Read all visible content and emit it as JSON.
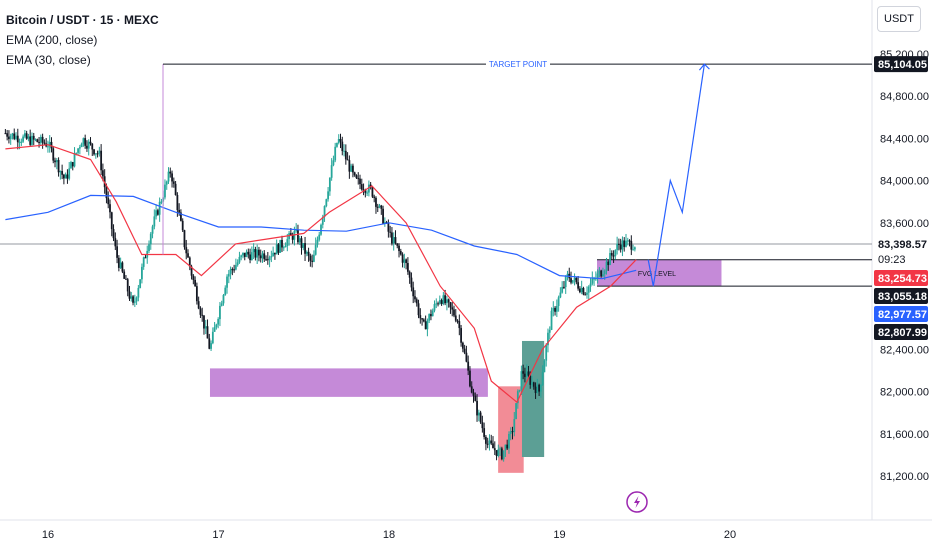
{
  "legend": {
    "title": "Bitcoin / USDT · 15 · MEXC",
    "ema200": "EMA (200, close)",
    "ema30": "EMA (30, close)"
  },
  "currency_button": "USDT",
  "colors": {
    "bull": "#26a69a",
    "bear": "#131722",
    "ema200": "#2962ff",
    "ema30": "#f23645",
    "zone": "#c58ad8",
    "red_box": "#f28c96",
    "green_box": "#5c9f95",
    "projection": "#2962ff"
  },
  "chart_data": {
    "type": "candlestick",
    "symbol": "Bitcoin / USDT",
    "interval": "15",
    "exchange": "MEXC",
    "x_tick_labels": [
      "16",
      "17",
      "18",
      "19",
      "20"
    ],
    "y_tick_labels": [
      "85,200.00",
      "84,800.00",
      "84,400.00",
      "84,000.00",
      "83,600.00",
      "82,400.00",
      "82,000.00",
      "81,600.00",
      "81,200.00"
    ],
    "ylim": [
      81100,
      85280
    ],
    "grid": false,
    "price_tags": [
      {
        "label": "85,104.05",
        "value": 85104.05,
        "style": "dark"
      },
      {
        "label": "83,398.57",
        "value": 83398.57,
        "style": "dark",
        "sub": "09:23"
      },
      {
        "label": "83,254.73",
        "value": 83254.73,
        "style": "red"
      },
      {
        "label": "83,055.18",
        "value": 83055.18,
        "style": "dark"
      },
      {
        "label": "82,977.57",
        "value": 82977.57,
        "style": "blue"
      },
      {
        "label": "82,807.99",
        "value": 82807.99,
        "style": "dark"
      }
    ],
    "current_price": 83398.57,
    "current_countdown": "09:23",
    "annotations": {
      "target_label": "TARGET POINT",
      "target_value": 85104.05,
      "fvg_label": "FVG LEVEL",
      "fvg_zone": [
        83000,
        83250
      ],
      "lower_zone": [
        81950,
        82220
      ]
    },
    "projection_path": [
      {
        "day": 19.52,
        "price": 83250
      },
      {
        "day": 19.55,
        "price": 83000
      },
      {
        "day": 19.65,
        "price": 84000
      },
      {
        "day": 19.72,
        "price": 83700
      },
      {
        "day": 19.85,
        "price": 85104
      }
    ],
    "series": [
      {
        "name": "EMA (200, close)",
        "points": [
          [
            15.75,
            83630
          ],
          [
            16.0,
            83700
          ],
          [
            16.25,
            83860
          ],
          [
            16.5,
            83850
          ],
          [
            16.75,
            83700
          ],
          [
            17.0,
            83560
          ],
          [
            17.25,
            83560
          ],
          [
            17.5,
            83530
          ],
          [
            17.75,
            83520
          ],
          [
            18.0,
            83600
          ],
          [
            18.25,
            83530
          ],
          [
            18.5,
            83380
          ],
          [
            18.75,
            83300
          ],
          [
            19.0,
            83100
          ],
          [
            19.25,
            83070
          ],
          [
            19.45,
            83150
          ]
        ]
      },
      {
        "name": "EMA (30, close)",
        "points": [
          [
            15.75,
            84300
          ],
          [
            16.0,
            84340
          ],
          [
            16.25,
            84200
          ],
          [
            16.4,
            83800
          ],
          [
            16.55,
            83300
          ],
          [
            16.75,
            83300
          ],
          [
            16.9,
            83100
          ],
          [
            17.1,
            83400
          ],
          [
            17.3,
            83450
          ],
          [
            17.5,
            83500
          ],
          [
            17.65,
            83700
          ],
          [
            17.9,
            83950
          ],
          [
            18.1,
            83600
          ],
          [
            18.3,
            83000
          ],
          [
            18.5,
            82600
          ],
          [
            18.6,
            82100
          ],
          [
            18.75,
            81900
          ],
          [
            18.9,
            82400
          ],
          [
            19.1,
            82800
          ],
          [
            19.3,
            83000
          ],
          [
            19.45,
            83250
          ]
        ]
      },
      {
        "name": "price",
        "points": [
          [
            15.75,
            84450
          ],
          [
            15.85,
            84400
          ],
          [
            16.0,
            84350
          ],
          [
            16.1,
            84000
          ],
          [
            16.2,
            84400
          ],
          [
            16.3,
            84250
          ],
          [
            16.4,
            83300
          ],
          [
            16.5,
            82800
          ],
          [
            16.6,
            83500
          ],
          [
            16.72,
            84100
          ],
          [
            16.8,
            83400
          ],
          [
            16.95,
            82400
          ],
          [
            17.05,
            83100
          ],
          [
            17.15,
            83300
          ],
          [
            17.3,
            83300
          ],
          [
            17.45,
            83500
          ],
          [
            17.55,
            83200
          ],
          [
            17.7,
            84400
          ],
          [
            17.8,
            84000
          ],
          [
            17.9,
            83900
          ],
          [
            18.0,
            83500
          ],
          [
            18.1,
            83200
          ],
          [
            18.2,
            82600
          ],
          [
            18.3,
            82900
          ],
          [
            18.4,
            82700
          ],
          [
            18.5,
            81900
          ],
          [
            18.58,
            81500
          ],
          [
            18.66,
            81400
          ],
          [
            18.72,
            81600
          ],
          [
            18.78,
            82200
          ],
          [
            18.88,
            82000
          ],
          [
            18.95,
            82700
          ],
          [
            19.05,
            83100
          ],
          [
            19.15,
            82950
          ],
          [
            19.25,
            83150
          ],
          [
            19.35,
            83400
          ],
          [
            19.45,
            83398.57
          ]
        ]
      }
    ]
  }
}
